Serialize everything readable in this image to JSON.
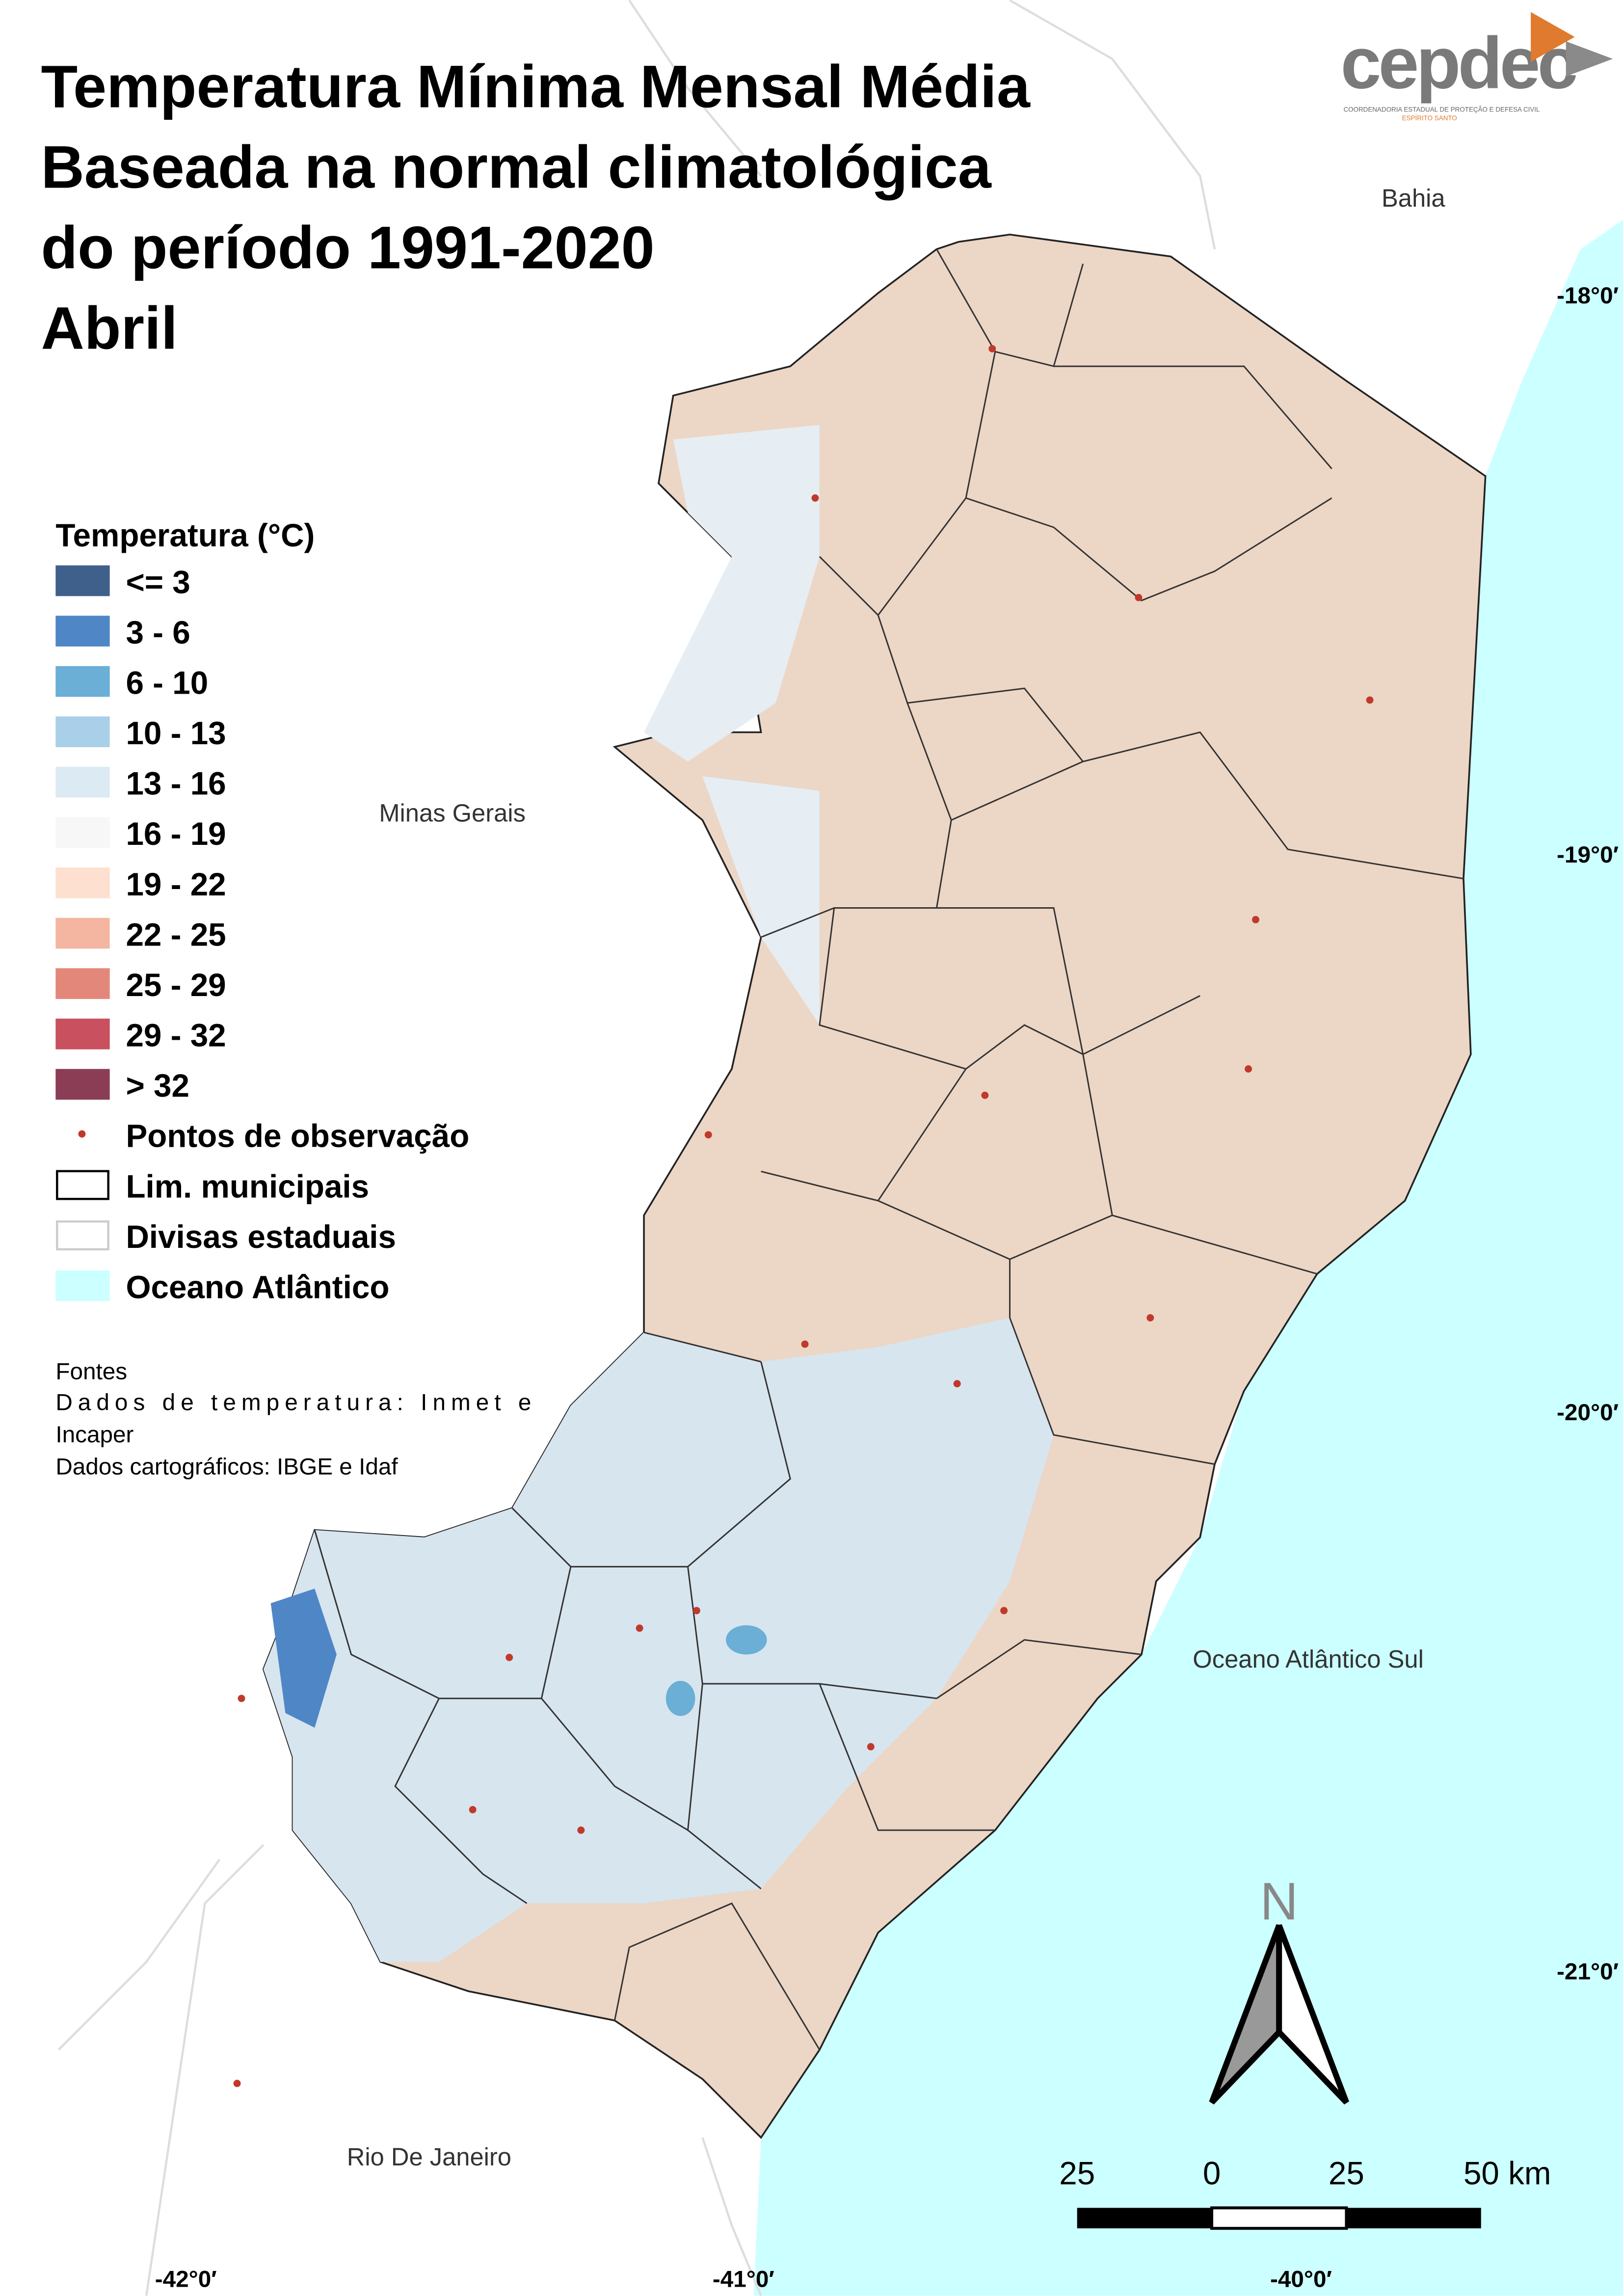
{
  "header": {
    "title": [
      "Temperatura Mínima Mensal Média",
      "Baseada na normal climatológica",
      "do período 1991-2020",
      "Abril"
    ]
  },
  "logo": {
    "name": "cepdec",
    "subtitle": "COORDENADORIA ESTADUAL DE PROTEÇÃO E DEFESA CIVIL",
    "state": "ESPÍRITO SANTO"
  },
  "legend": {
    "title": "Temperatura (°C)",
    "items": [
      {
        "label": "<= 3",
        "color": "#40608c"
      },
      {
        "label": "3 - 6",
        "color": "#4f86c6"
      },
      {
        "label": "6 - 10",
        "color": "#6baed6"
      },
      {
        "label": "10 - 13",
        "color": "#a9d0e8"
      },
      {
        "label": "13 - 16",
        "color": "#dceaf3"
      },
      {
        "label": "16 - 19",
        "color": "#f7f7f7"
      },
      {
        "label": "19 - 22",
        "color": "#fde0d0"
      },
      {
        "label": "22 - 25",
        "color": "#f4b6a0"
      },
      {
        "label": "25 - 29",
        "color": "#e3877a"
      },
      {
        "label": "29 - 32",
        "color": "#c9505e"
      },
      {
        "label": "> 32",
        "color": "#8b3d56"
      }
    ],
    "symbols": [
      {
        "label": "Pontos de observação",
        "color": "#c0392b"
      },
      {
        "label": "Lim. municipais",
        "color": "#000000"
      },
      {
        "label": "Divisas estaduais",
        "color": "#cccccc"
      },
      {
        "label": "Oceano Atlântico",
        "color": "#ccffff"
      }
    ]
  },
  "sources": {
    "heading": "Fontes",
    "lines": [
      "Dados de temperatura: Inmet e",
      "Incaper",
      "Dados cartográficos: IBGE e Idaf"
    ]
  },
  "places": [
    "Bahia",
    "Minas Gerais",
    "Oceano Atlântico Sul",
    "Rio De Janeiro"
  ],
  "graticule": {
    "lat": [
      "-18°0′",
      "-19°0′",
      "-20°0′",
      "-21°0′"
    ],
    "lon": [
      "-42°0′",
      "-41°0′",
      "-40°0′"
    ]
  },
  "north": "N",
  "scale_bar": {
    "labels": [
      "25",
      "0",
      "25",
      "50 km"
    ]
  }
}
